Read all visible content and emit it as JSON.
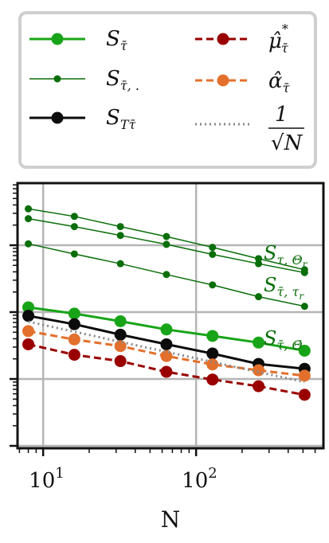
{
  "chart_data": {
    "type": "line",
    "xlabel": "N",
    "ylabel": "",
    "xscale": "log",
    "yscale": "log",
    "xlim": [
      6.8,
      680
    ],
    "x_ticks": [
      {
        "value": 10,
        "base": "10",
        "exp": "1"
      },
      {
        "value": 100,
        "base": "10",
        "exp": "2"
      }
    ],
    "grid": true,
    "legend_position": "top",
    "legend": [
      {
        "series": "s_tau",
        "label": "S",
        "sub": "τ̄"
      },
      {
        "series": "mu_hat",
        "label": "μ̂",
        "sup": "*",
        "sub": "τ̄"
      },
      {
        "series": "s_tau_dot",
        "label": "S",
        "sub": "τ̄, ."
      },
      {
        "series": "alpha_hat",
        "label": "α̂",
        "sub": "τ̄"
      },
      {
        "series": "s_T_tau",
        "label": "S",
        "sub": "Tτ̄"
      },
      {
        "series": "ref",
        "label": "1/√N"
      }
    ],
    "x": [
      8,
      16,
      32,
      64,
      128,
      256,
      512
    ],
    "series": [
      {
        "id": "s_tau_dot_1",
        "color": "#0a6e0a",
        "style": "thin-solid",
        "values": [
          0.0035,
          0.0027,
          0.0019,
          0.00135,
          0.00093,
          0.00063,
          0.00043
        ]
      },
      {
        "id": "s_tau_dot_2",
        "color": "#0a6e0a",
        "style": "thin-solid",
        "values": [
          0.0025,
          0.0019,
          0.0014,
          0.00103,
          0.00073,
          0.00053,
          0.00039
        ]
      },
      {
        "id": "s_tau_dot_3",
        "color": "#0a6e0a",
        "style": "thin-solid",
        "values": [
          0.00105,
          0.00074,
          0.00053,
          0.000365,
          0.000255,
          0.00017,
          0.000122
        ]
      },
      {
        "id": "s_tau",
        "color": "#18a418",
        "style": "thick-solid",
        "values": [
          0.000118,
          9.5e-05,
          7.3e-05,
          5.5e-05,
          4.4e-05,
          3.5e-05,
          2.65e-05
        ]
      },
      {
        "id": "s_T_tau",
        "color": "#0c0c0c",
        "style": "thick-solid",
        "values": [
          8.8e-05,
          6.6e-05,
          4.6e-05,
          3.3e-05,
          2.4e-05,
          1.68e-05,
          1.42e-05
        ]
      },
      {
        "id": "alpha_hat",
        "color": "#e2702c",
        "style": "dashed",
        "values": [
          5.2e-05,
          3.9e-05,
          3.1e-05,
          2.2e-05,
          1.65e-05,
          1.35e-05,
          1.12e-05
        ]
      },
      {
        "id": "mu_hat",
        "color": "#9a0000",
        "style": "dashed",
        "values": [
          3.3e-05,
          2.3e-05,
          1.85e-05,
          1.28e-05,
          9.8e-06,
          7.8e-06,
          5.8e-06
        ]
      },
      {
        "id": "ref",
        "color": "#888888",
        "style": "dotted",
        "values": [
          7.2e-05,
          5.1e-05,
          3.6e-05,
          2.55e-05,
          1.8e-05,
          1.27e-05,
          9e-06
        ]
      }
    ],
    "annotations": [
      {
        "label": "S",
        "sub": "τ, Θ",
        "subsub": "r"
      },
      {
        "label": "S",
        "sub": "τ̄, τ",
        "subsub": "r"
      },
      {
        "label": "S",
        "sub": "τ̄, Θ̄"
      }
    ]
  }
}
